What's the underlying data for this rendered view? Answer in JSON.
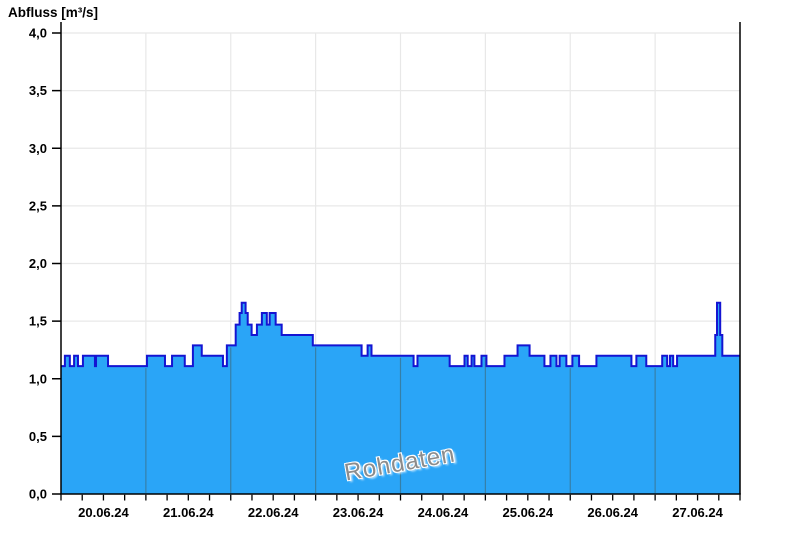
{
  "title": "Abfluss [m³/s]",
  "watermark": "Rohdaten",
  "chart_data": {
    "type": "area",
    "title": "Abfluss [m³/s]",
    "ylabel": "Abfluss [m³/s]",
    "xlabel": "",
    "ylim": [
      0,
      4
    ],
    "ytick_step": 0.5,
    "ytick_labels": [
      "0,0",
      "0,5",
      "1,0",
      "1,5",
      "2,0",
      "2,5",
      "3,0",
      "3,5",
      "4,0"
    ],
    "day_labels": [
      "20.06.24",
      "21.06.24",
      "22.06.24",
      "23.06.24",
      "24.06.24",
      "25.06.24",
      "26.06.24",
      "27.06.24"
    ],
    "x_range_hours": [
      0,
      192
    ],
    "x_minor_tick_hours": 6,
    "grid": true,
    "legend_position": "none",
    "series": [
      {
        "name": "Rohdaten",
        "step": "after",
        "points": [
          [
            0,
            1.11
          ],
          [
            1.1,
            1.2
          ],
          [
            2.5,
            1.11
          ],
          [
            3.7,
            1.2
          ],
          [
            4.8,
            1.11
          ],
          [
            6.2,
            1.2
          ],
          [
            9.6,
            1.11
          ],
          [
            9.9,
            1.2
          ],
          [
            13.3,
            1.11
          ],
          [
            24.3,
            1.2
          ],
          [
            29.4,
            1.11
          ],
          [
            31.4,
            1.2
          ],
          [
            35,
            1.11
          ],
          [
            37.3,
            1.29
          ],
          [
            39.8,
            1.2
          ],
          [
            45.8,
            1.11
          ],
          [
            46.9,
            1.29
          ],
          [
            49.4,
            1.47
          ],
          [
            50.5,
            1.57
          ],
          [
            51.1,
            1.66
          ],
          [
            52.2,
            1.57
          ],
          [
            52.8,
            1.47
          ],
          [
            53.9,
            1.38
          ],
          [
            55.4,
            1.47
          ],
          [
            56.8,
            1.57
          ],
          [
            58.2,
            1.47
          ],
          [
            59,
            1.57
          ],
          [
            60.7,
            1.47
          ],
          [
            62.4,
            1.38
          ],
          [
            71.2,
            1.29
          ],
          [
            85,
            1.2
          ],
          [
            86.7,
            1.29
          ],
          [
            87.8,
            1.2
          ],
          [
            99.7,
            1.11
          ],
          [
            100.8,
            1.2
          ],
          [
            109.9,
            1.11
          ],
          [
            114.1,
            1.2
          ],
          [
            115,
            1.11
          ],
          [
            116.1,
            1.2
          ],
          [
            116.9,
            1.11
          ],
          [
            118.9,
            1.2
          ],
          [
            120.3,
            1.11
          ],
          [
            125.4,
            1.2
          ],
          [
            129.1,
            1.29
          ],
          [
            132.5,
            1.2
          ],
          [
            136.7,
            1.11
          ],
          [
            138.4,
            1.2
          ],
          [
            140.1,
            1.11
          ],
          [
            141,
            1.2
          ],
          [
            142.9,
            1.11
          ],
          [
            144.6,
            1.2
          ],
          [
            146.5,
            1.11
          ],
          [
            151.4,
            1.2
          ],
          [
            161.3,
            1.11
          ],
          [
            162.7,
            1.2
          ],
          [
            165.5,
            1.11
          ],
          [
            170,
            1.2
          ],
          [
            171.4,
            1.11
          ],
          [
            172.2,
            1.2
          ],
          [
            173.1,
            1.11
          ],
          [
            174.2,
            1.2
          ],
          [
            185,
            1.38
          ],
          [
            185.5,
            1.66
          ],
          [
            186.4,
            1.38
          ],
          [
            187,
            1.2
          ]
        ]
      }
    ],
    "colors": {
      "fill": "#2AA5F7",
      "line": "#1414D2",
      "grid": "#E8E8E8",
      "grid_on_fill": "#38799A",
      "axis": "#000000",
      "watermark": "#8C8C8C"
    }
  }
}
